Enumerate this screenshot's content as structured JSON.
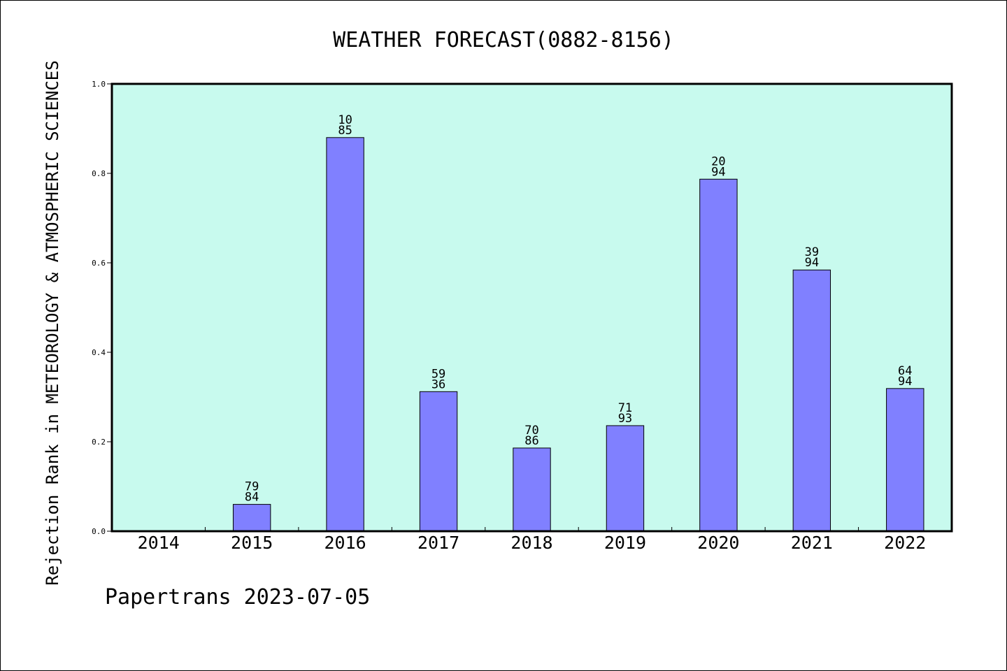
{
  "chart_data": {
    "type": "bar",
    "title": "WEATHER FORECAST(0882-8156)",
    "ylabel": "Rejection Rank in METEOROLOGY & ATMOSPHERIC SCIENCES",
    "xlabel": "",
    "footer": "Papertrans 2023-07-05",
    "categories": [
      "2014",
      "2015",
      "2016",
      "2017",
      "2018",
      "2019",
      "2020",
      "2021",
      "2022"
    ],
    "values": [
      null,
      0.06,
      0.88,
      0.312,
      0.186,
      0.236,
      0.787,
      0.584,
      0.319
    ],
    "bar_labels": [
      null,
      [
        "79",
        "84"
      ],
      [
        "10",
        "85"
      ],
      [
        "59",
        "36"
      ],
      [
        "70",
        "86"
      ],
      [
        "71",
        "93"
      ],
      [
        "20",
        "94"
      ],
      [
        "39",
        "94"
      ],
      [
        "64",
        "94"
      ]
    ],
    "yticks": [
      "0.0",
      "0.2",
      "0.4",
      "0.6",
      "0.8",
      "1.0"
    ],
    "ylim": [
      0,
      1.0
    ],
    "grid": false,
    "legend": "none",
    "colors": {
      "plot_background": "#c8faee",
      "bar_fill": "#8080ff",
      "bar_stroke": "#000000",
      "axis": "#000000"
    }
  }
}
